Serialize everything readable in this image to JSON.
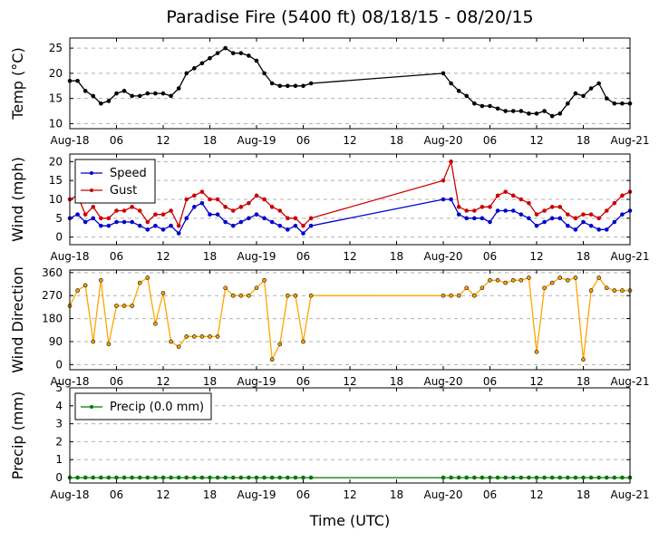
{
  "chart_data": {
    "title": "Paradise Fire (5400 ft) 08/18/15 - 08/20/15",
    "xlabel": "Time (UTC)",
    "x_unit": "hours",
    "x_range": [
      0,
      72
    ],
    "x_ticks": [
      {
        "x": 0,
        "label": "Aug-18"
      },
      {
        "x": 6,
        "label": "06"
      },
      {
        "x": 12,
        "label": "12"
      },
      {
        "x": 18,
        "label": "18"
      },
      {
        "x": 24,
        "label": "Aug-19"
      },
      {
        "x": 30,
        "label": "06"
      },
      {
        "x": 36,
        "label": "12"
      },
      {
        "x": 42,
        "label": "18"
      },
      {
        "x": 48,
        "label": "Aug-20"
      },
      {
        "x": 54,
        "label": "06"
      },
      {
        "x": 60,
        "label": "12"
      },
      {
        "x": 66,
        "label": "18"
      },
      {
        "x": 72,
        "label": "Aug-21"
      }
    ],
    "panels": [
      {
        "id": "temp",
        "type": "line",
        "ylabel": "Temp (°C)",
        "ylim": [
          9,
          27
        ],
        "yticks": [
          10,
          15,
          20,
          25
        ],
        "grid": true,
        "series": [
          {
            "color": "#000000",
            "x": [
              0,
              1,
              2,
              3,
              4,
              5,
              6,
              7,
              8,
              9,
              10,
              11,
              12,
              13,
              14,
              15,
              16,
              17,
              18,
              19,
              20,
              21,
              22,
              23,
              24,
              25,
              26,
              27,
              28,
              29,
              30,
              31,
              48,
              49,
              50,
              51,
              52,
              53,
              54,
              55,
              56,
              57,
              58,
              59,
              60,
              61,
              62,
              63,
              64,
              65,
              66,
              67,
              68,
              69,
              70,
              71,
              72
            ],
            "y": [
              18.5,
              18.5,
              16.5,
              15.5,
              14,
              14.5,
              16,
              16.5,
              15.5,
              15.5,
              16,
              16,
              16,
              15.5,
              17,
              20,
              21,
              22,
              23,
              24,
              25,
              24,
              24,
              23.5,
              22.5,
              20,
              18,
              17.5,
              17.5,
              17.5,
              17.5,
              18,
              20,
              18,
              16.5,
              15.5,
              14,
              13.5,
              13.5,
              13,
              12.5,
              12.5,
              12.5,
              12,
              12,
              12.5,
              11.5,
              12,
              14,
              16,
              15.5,
              17,
              18,
              15,
              14,
              14,
              14
            ]
          }
        ]
      },
      {
        "id": "wind",
        "type": "line",
        "ylabel": "Wind (mph)",
        "ylim": [
          -2,
          22
        ],
        "yticks": [
          0,
          5,
          10,
          15,
          20
        ],
        "grid": true,
        "legend_position": "top-left",
        "series": [
          {
            "name": "Speed",
            "color": "#0000cc",
            "x": [
              0,
              1,
              2,
              3,
              4,
              5,
              6,
              7,
              8,
              9,
              10,
              11,
              12,
              13,
              14,
              15,
              16,
              17,
              18,
              19,
              20,
              21,
              22,
              23,
              24,
              25,
              26,
              27,
              28,
              29,
              30,
              31,
              48,
              49,
              50,
              51,
              52,
              53,
              54,
              55,
              56,
              57,
              58,
              59,
              60,
              61,
              62,
              63,
              64,
              65,
              66,
              67,
              68,
              69,
              70,
              71,
              72
            ],
            "y": [
              5,
              6,
              4,
              5,
              3,
              3,
              4,
              4,
              4,
              3,
              2,
              3,
              2,
              3,
              1,
              5,
              8,
              9,
              6,
              6,
              4,
              3,
              4,
              5,
              6,
              5,
              4,
              3,
              2,
              3,
              1,
              3,
              10,
              10,
              6,
              5,
              5,
              5,
              4,
              7,
              7,
              7,
              6,
              5,
              3,
              4,
              5,
              5,
              3,
              2,
              4,
              3,
              2,
              2,
              4,
              6,
              7
            ]
          },
          {
            "name": "Gust",
            "color": "#cc0000",
            "x": [
              0,
              1,
              2,
              3,
              4,
              5,
              6,
              7,
              8,
              9,
              10,
              11,
              12,
              13,
              14,
              15,
              16,
              17,
              18,
              19,
              20,
              21,
              22,
              23,
              24,
              25,
              26,
              27,
              28,
              29,
              30,
              31,
              48,
              49,
              50,
              51,
              52,
              53,
              54,
              55,
              56,
              57,
              58,
              59,
              60,
              61,
              62,
              63,
              64,
              65,
              66,
              67,
              68,
              69,
              70,
              71,
              72
            ],
            "y": [
              10,
              11,
              6,
              8,
              5,
              5,
              7,
              7,
              8,
              7,
              4,
              6,
              6,
              7,
              3,
              10,
              11,
              12,
              10,
              10,
              8,
              7,
              8,
              9,
              11,
              10,
              8,
              7,
              5,
              5,
              3,
              5,
              15,
              20,
              8,
              7,
              7,
              8,
              8,
              11,
              12,
              11,
              10,
              9,
              6,
              7,
              8,
              8,
              6,
              5,
              6,
              6,
              5,
              7,
              9,
              11,
              12
            ]
          }
        ]
      },
      {
        "id": "wdir",
        "type": "scatter-line",
        "ylabel": "Wind Direction",
        "ylim": [
          -20,
          370
        ],
        "yticks": [
          0,
          90,
          180,
          270,
          360
        ],
        "grid": true,
        "series": [
          {
            "color": "#ffa500",
            "x": [
              0,
              1,
              2,
              3,
              4,
              5,
              6,
              7,
              8,
              9,
              10,
              11,
              12,
              13,
              14,
              15,
              16,
              17,
              18,
              19,
              20,
              21,
              22,
              23,
              24,
              25,
              26,
              27,
              28,
              29,
              30,
              31,
              48,
              49,
              50,
              51,
              52,
              53,
              54,
              55,
              56,
              57,
              58,
              59,
              60,
              61,
              62,
              63,
              64,
              65,
              66,
              67,
              68,
              69,
              70,
              71,
              72
            ],
            "y": [
              230,
              290,
              310,
              90,
              330,
              80,
              230,
              230,
              230,
              320,
              340,
              160,
              280,
              90,
              70,
              110,
              110,
              110,
              110,
              110,
              300,
              270,
              270,
              270,
              300,
              330,
              20,
              80,
              270,
              270,
              90,
              270,
              270,
              270,
              270,
              300,
              270,
              300,
              330,
              330,
              320,
              330,
              330,
              340,
              50,
              300,
              320,
              340,
              330,
              340,
              20,
              290,
              340,
              300,
              290,
              290,
              290
            ]
          }
        ]
      },
      {
        "id": "precip",
        "type": "line",
        "ylabel": "Precip (mm)",
        "ylim": [
          -0.3,
          5
        ],
        "yticks": [
          0,
          1,
          2,
          3,
          4,
          5
        ],
        "grid": true,
        "legend_position": "top-left",
        "series": [
          {
            "name": "Precip (0.0 mm)",
            "color": "#007700",
            "x": [
              0,
              1,
              2,
              3,
              4,
              5,
              6,
              7,
              8,
              9,
              10,
              11,
              12,
              13,
              14,
              15,
              16,
              17,
              18,
              19,
              20,
              21,
              22,
              23,
              24,
              25,
              26,
              27,
              28,
              29,
              30,
              31,
              48,
              49,
              50,
              51,
              52,
              53,
              54,
              55,
              56,
              57,
              58,
              59,
              60,
              61,
              62,
              63,
              64,
              65,
              66,
              67,
              68,
              69,
              70,
              71,
              72
            ],
            "y": [
              0,
              0,
              0,
              0,
              0,
              0,
              0,
              0,
              0,
              0,
              0,
              0,
              0,
              0,
              0,
              0,
              0,
              0,
              0,
              0,
              0,
              0,
              0,
              0,
              0,
              0,
              0,
              0,
              0,
              0,
              0,
              0,
              0,
              0,
              0,
              0,
              0,
              0,
              0,
              0,
              0,
              0,
              0,
              0,
              0,
              0,
              0,
              0,
              0,
              0,
              0,
              0,
              0,
              0,
              0,
              0,
              0
            ]
          }
        ]
      }
    ]
  }
}
